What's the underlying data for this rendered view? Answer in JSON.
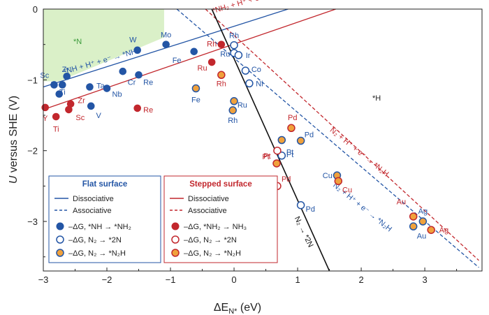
{
  "chart_data": {
    "type": "scatter",
    "xlabel": "ΔE",
    "xlabel_sub": "N*",
    "xlabel_unit": " (eV)",
    "ylabel_italic": "U",
    "ylabel_rest": " versus SHE (V)",
    "xlim": [
      -3,
      3.9
    ],
    "ylim": [
      -3.7,
      0
    ],
    "xticks": [
      -3,
      -2,
      -1,
      0,
      1,
      2,
      3
    ],
    "yticks": [
      0,
      -1,
      -2,
      -3
    ],
    "colors": {
      "blue": "#2355a5",
      "red": "#c2272d",
      "orange": "#f0a13c",
      "region": "#daf0c8"
    },
    "region_labels": {
      "n_star": "*N",
      "h_star": "*H"
    },
    "lines": [
      {
        "id": "flat-diss-nh",
        "color": "blue",
        "dash": false,
        "p1": [
          -3,
          -1.1
        ],
        "p2": [
          0.85,
          0
        ]
      },
      {
        "id": "step-diss-nh",
        "color": "red",
        "dash": false,
        "p1": [
          -3,
          -1.42
        ],
        "p2": [
          1.6,
          0
        ]
      },
      {
        "id": "flat-assoc",
        "color": "blue",
        "dash": true,
        "p1": [
          -0.9,
          0
        ],
        "p2": [
          3.85,
          -3.65
        ]
      },
      {
        "id": "step-assoc",
        "color": "red",
        "dash": true,
        "p1": [
          -0.45,
          0
        ],
        "p2": [
          3.85,
          -3.55
        ]
      },
      {
        "id": "n2-diss",
        "color": "black",
        "dash": false,
        "p1": [
          -0.35,
          0
        ],
        "p2": [
          1.5,
          -3.7
        ]
      }
    ],
    "annotations": [
      {
        "text": "*NH₂ + H⁺ + e⁻ → *NH₃",
        "x": -0.33,
        "y": -0.06,
        "angle": -16,
        "color": "red"
      },
      {
        "text": "*NH + H⁺ + e⁻ → *NH₂",
        "x": -2.67,
        "y": -0.92,
        "angle": -16,
        "color": "blue"
      },
      {
        "text": "N₂ + H⁺ + e⁻ → *N₂H",
        "x": 1.5,
        "y": -1.72,
        "angle": 39,
        "color": "red"
      },
      {
        "text": "N₂ + H⁺ + e⁻ → *N₂H",
        "x": 1.55,
        "y": -2.5,
        "angle": 39,
        "color": "blue"
      },
      {
        "text": "N₂ → *2N",
        "x": 0.95,
        "y": -2.95,
        "angle": 64,
        "color": "black"
      }
    ],
    "series": [
      {
        "name": "–ΔG, *NH → *NH₂",
        "color": "blue",
        "marker": "filled",
        "points": [
          {
            "label": "Sc",
            "x": -2.83,
            "y": -1.07,
            "lx": -2.98,
            "ly": -0.93
          },
          {
            "label": "Zr",
            "x": -2.7,
            "y": -1.07,
            "lx": -2.65,
            "ly": -0.85
          },
          {
            "label": "Y",
            "x": -2.63,
            "y": -0.95,
            "lx": -2.84,
            "ly": -1.06
          },
          {
            "label": "Ti",
            "x": -2.75,
            "y": -1.2,
            "lx": -2.7,
            "ly": -1.17
          },
          {
            "label": "Ta",
            "x": -2.27,
            "y": -1.1,
            "lx": -2.1,
            "ly": -1.08
          },
          {
            "label": "V",
            "x": -2.25,
            "y": -1.37,
            "lx": -2.13,
            "ly": -1.5
          },
          {
            "label": "Nb",
            "x": -2.0,
            "y": -1.12,
            "lx": -1.84,
            "ly": -1.2
          },
          {
            "label": "Cr",
            "x": -1.75,
            "y": -0.88,
            "lx": -1.61,
            "ly": -1.03
          },
          {
            "label": "Re",
            "x": -1.5,
            "y": -0.93,
            "lx": -1.35,
            "ly": -1.03
          },
          {
            "label": "W",
            "x": -1.52,
            "y": -0.58,
            "lx": -1.59,
            "ly": -0.43
          },
          {
            "label": "Mo",
            "x": -1.07,
            "y": -0.5,
            "lx": -1.07,
            "ly": -0.36
          },
          {
            "label": "Fe",
            "x": -0.63,
            "y": -0.6,
            "lx": -0.9,
            "ly": -0.72
          }
        ]
      },
      {
        "name": "–ΔG, N₂ → *2N",
        "color": "blue",
        "marker": "open",
        "points": [
          {
            "label": "Rh",
            "x": 0.0,
            "y": -0.51,
            "lx": 0.0,
            "ly": -0.37
          },
          {
            "label": "Ru",
            "x": 0.0,
            "y": -0.62,
            "lx": -0.14,
            "ly": -0.63
          },
          {
            "label": "Ir",
            "x": 0.07,
            "y": -0.65,
            "lx": 0.22,
            "ly": -0.65
          },
          {
            "label": "Co",
            "x": 0.18,
            "y": -0.87,
            "lx": 0.35,
            "ly": -0.85
          },
          {
            "label": "Ni",
            "x": 0.24,
            "y": -1.05,
            "lx": 0.4,
            "ly": -1.05
          },
          {
            "label": "Pt",
            "x": 0.75,
            "y": -2.07,
            "lx": 0.88,
            "ly": -2.05
          },
          {
            "label": "Pd",
            "x": 1.05,
            "y": -2.77,
            "lx": 1.2,
            "ly": -2.82
          }
        ]
      },
      {
        "name": "–ΔG, N₂ → *N₂H",
        "color": "blue",
        "marker": "orange",
        "points": [
          {
            "label": "Fe",
            "x": -0.6,
            "y": -1.12,
            "lx": -0.6,
            "ly": -1.28
          },
          {
            "label": "Ru",
            "x": 0.0,
            "y": -1.3,
            "lx": 0.13,
            "ly": -1.35
          },
          {
            "label": "Rh",
            "x": -0.02,
            "y": -1.43,
            "lx": -0.02,
            "ly": -1.57
          },
          {
            "label": "Pd",
            "x": 1.05,
            "y": -1.86,
            "lx": 1.18,
            "ly": -1.77
          },
          {
            "label": "Pt",
            "x": 0.75,
            "y": -1.85,
            "lx": 0.88,
            "ly": -2.02
          },
          {
            "label": "Cu",
            "x": 1.62,
            "y": -2.35,
            "lx": 1.47,
            "ly": -2.35
          },
          {
            "label": "Ag",
            "x": 2.97,
            "y": -3.0,
            "lx": 2.97,
            "ly": -2.85
          },
          {
            "label": "Au",
            "x": 2.82,
            "y": -3.07,
            "lx": 2.95,
            "ly": -3.2
          }
        ]
      },
      {
        "name": "–ΔG, *NH₂ → NH₃",
        "color": "red",
        "marker": "filled",
        "points": [
          {
            "label": "Y",
            "x": -2.97,
            "y": -1.39,
            "lx": -2.97,
            "ly": -1.54
          },
          {
            "label": "Ti",
            "x": -2.8,
            "y": -1.52,
            "lx": -2.8,
            "ly": -1.69
          },
          {
            "label": "Sc",
            "x": -2.6,
            "y": -1.42,
            "lx": -2.42,
            "ly": -1.53
          },
          {
            "label": "Zr",
            "x": -2.57,
            "y": -1.34,
            "lx": -2.4,
            "ly": -1.29
          },
          {
            "label": "Re",
            "x": -1.52,
            "y": -1.4,
            "lx": -1.35,
            "ly": -1.42
          },
          {
            "label": "Rh",
            "x": -0.2,
            "y": -0.5,
            "lx": -0.35,
            "ly": -0.49
          },
          {
            "label": "Ru",
            "x": -0.35,
            "y": -0.75,
            "lx": -0.5,
            "ly": -0.83
          }
        ]
      },
      {
        "name": "–ΔG, N₂ → *2N",
        "color": "red",
        "marker": "open",
        "points": [
          {
            "label": "Pt",
            "x": 0.68,
            "y": -2.0,
            "lx": 0.52,
            "ly": -2.07
          },
          {
            "label": "Pd",
            "x": 0.68,
            "y": -2.5,
            "lx": 0.82,
            "ly": -2.4
          }
        ]
      },
      {
        "name": "–ΔG, N₂ → *N₂H",
        "color": "red",
        "marker": "orange",
        "points": [
          {
            "label": "Rh",
            "x": -0.2,
            "y": -0.93,
            "lx": -0.2,
            "ly": -1.05
          },
          {
            "label": "Pd",
            "x": 0.9,
            "y": -1.68,
            "lx": 0.92,
            "ly": -1.53
          },
          {
            "label": "Pt",
            "x": 0.67,
            "y": -2.18,
            "lx": 0.5,
            "ly": -2.08
          },
          {
            "label": "Cu",
            "x": 1.64,
            "y": -2.43,
            "lx": 1.78,
            "ly": -2.55
          },
          {
            "label": "Au",
            "x": 2.82,
            "y": -2.93,
            "lx": 2.63,
            "ly": -2.72
          },
          {
            "label": "Ag",
            "x": 3.1,
            "y": -3.12,
            "lx": 3.3,
            "ly": -3.12
          }
        ]
      }
    ],
    "legend": {
      "flat": {
        "title": "Flat surface",
        "line1": "Dissociative",
        "line2": "Associative",
        "m1": "–ΔG, *NH → *NH₂",
        "m2": "–ΔG, N₂ → *2N",
        "m3": "–ΔG, N₂ → *N₂H"
      },
      "stepped": {
        "title": "Stepped surface",
        "line1": "Dissociative",
        "line2": "Associative",
        "m1": "–ΔG, *NH₂ → NH₃",
        "m2": "–ΔG, N₂ → *2N",
        "m3": "–ΔG, N₂ → *N₂H"
      }
    }
  }
}
